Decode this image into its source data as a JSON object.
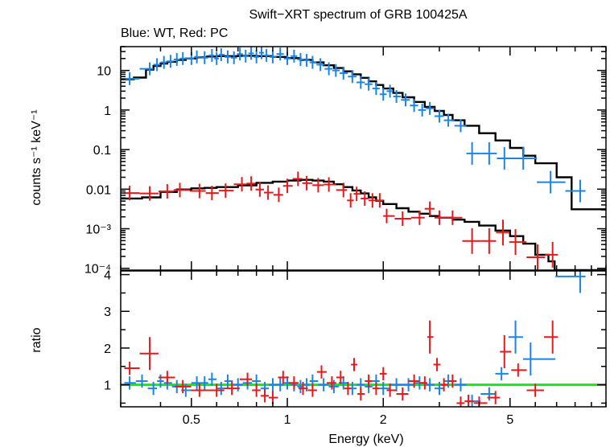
{
  "chart_data": {
    "type": "scatter",
    "title": "Swift−XRT spectrum of GRB 100425A",
    "subtitle": "Blue: WT, Red: PC",
    "xlabel": "Energy (keV)",
    "x_scale": "log",
    "xlim": [
      0.3,
      10
    ],
    "x_ticks": [
      {
        "value": 0.5,
        "label": "0.5"
      },
      {
        "value": 1,
        "label": "1"
      },
      {
        "value": 2,
        "label": "2"
      },
      {
        "value": 5,
        "label": "5"
      }
    ],
    "colors": {
      "wt": "#1a85e6",
      "pc": "#e8191a",
      "model": "#000000",
      "unity": "#19e619"
    },
    "top_panel": {
      "ylabel": "counts s⁻¹ keV⁻¹",
      "y_scale": "log",
      "ylim": [
        9e-05,
        40
      ],
      "y_ticks": [
        {
          "value": 10,
          "label": "10"
        },
        {
          "value": 1,
          "label": "1"
        },
        {
          "value": 0.1,
          "label": "0.1"
        },
        {
          "value": 0.01,
          "label": "0.01"
        },
        {
          "value": 0.001,
          "label": "10⁻³"
        },
        {
          "value": 0.0001,
          "label": "10⁻⁴"
        }
      ],
      "series": [
        {
          "color": "wt",
          "points": [
            [
              0.32,
              6.2
            ],
            [
              0.37,
              11
            ],
            [
              0.39,
              14
            ],
            [
              0.41,
              16
            ],
            [
              0.43,
              17
            ],
            [
              0.45,
              19
            ],
            [
              0.47,
              20
            ],
            [
              0.5,
              20
            ],
            [
              0.52,
              22
            ],
            [
              0.55,
              21
            ],
            [
              0.58,
              24
            ],
            [
              0.6,
              20
            ],
            [
              0.62,
              25
            ],
            [
              0.65,
              22
            ],
            [
              0.68,
              21
            ],
            [
              0.71,
              26
            ],
            [
              0.74,
              23
            ],
            [
              0.77,
              27
            ],
            [
              0.8,
              22
            ],
            [
              0.83,
              28
            ],
            [
              0.86,
              24
            ],
            [
              0.9,
              22
            ],
            [
              0.95,
              26
            ],
            [
              1.0,
              20
            ],
            [
              1.05,
              23
            ],
            [
              1.1,
              19
            ],
            [
              1.15,
              18
            ],
            [
              1.2,
              16
            ],
            [
              1.27,
              14
            ],
            [
              1.35,
              11
            ],
            [
              1.42,
              10
            ],
            [
              1.5,
              8.5
            ],
            [
              1.6,
              7
            ],
            [
              1.7,
              5
            ],
            [
              1.8,
              4.5
            ],
            [
              1.9,
              3.5
            ],
            [
              2.0,
              2.5
            ],
            [
              2.1,
              3.0
            ],
            [
              2.2,
              2.2
            ],
            [
              2.35,
              1.8
            ],
            [
              2.5,
              1.3
            ],
            [
              2.65,
              1.0
            ],
            [
              2.8,
              1.1
            ],
            [
              3.0,
              0.7
            ],
            [
              3.2,
              0.55
            ],
            [
              3.5,
              0.4
            ],
            [
              3.8,
              0.08
            ],
            [
              4.3,
              0.08
            ],
            [
              4.8,
              0.06
            ],
            [
              5.5,
              0.06
            ],
            [
              6.7,
              0.015
            ],
            [
              8.3,
              0.009
            ]
          ]
        },
        {
          "color": "pc",
          "points": [
            [
              0.32,
              0.008
            ],
            [
              0.37,
              0.0078
            ],
            [
              0.42,
              0.0088
            ],
            [
              0.46,
              0.0095
            ],
            [
              0.53,
              0.009
            ],
            [
              0.58,
              0.008
            ],
            [
              0.64,
              0.0092
            ],
            [
              0.72,
              0.0133
            ],
            [
              0.77,
              0.0139
            ],
            [
              0.82,
              0.0098
            ],
            [
              0.87,
              0.0082
            ],
            [
              0.94,
              0.0072
            ],
            [
              1.0,
              0.0121
            ],
            [
              1.08,
              0.0182
            ],
            [
              1.15,
              0.0142
            ],
            [
              1.25,
              0.0126
            ],
            [
              1.35,
              0.0131
            ],
            [
              1.5,
              0.0095
            ],
            [
              1.58,
              0.0052
            ],
            [
              1.65,
              0.0076
            ],
            [
              1.75,
              0.0058
            ],
            [
              1.85,
              0.0052
            ],
            [
              1.95,
              0.0052
            ],
            [
              2.05,
              0.0021
            ],
            [
              2.3,
              0.0018
            ],
            [
              2.6,
              0.0019
            ],
            [
              2.8,
              0.0032
            ],
            [
              3.0,
              0.0019
            ],
            [
              3.3,
              0.0019
            ],
            [
              3.8,
              0.00049
            ],
            [
              4.3,
              0.00049
            ],
            [
              4.75,
              0.0008
            ],
            [
              5.2,
              0.00046
            ],
            [
              6.1,
              0.00019
            ],
            [
              6.8,
              0.00022
            ]
          ]
        }
      ],
      "models": [
        {
          "color": "model",
          "steps": [
            [
              0.3,
              6.0
            ],
            [
              0.33,
              6.6
            ],
            [
              0.36,
              10.5
            ],
            [
              0.38,
              13
            ],
            [
              0.4,
              15
            ],
            [
              0.42,
              16.5
            ],
            [
              0.45,
              18.5
            ],
            [
              0.48,
              20
            ],
            [
              0.52,
              21.5
            ],
            [
              0.56,
              22.5
            ],
            [
              0.6,
              23
            ],
            [
              0.7,
              23.5
            ],
            [
              0.8,
              23
            ],
            [
              0.9,
              22
            ],
            [
              1.0,
              20.5
            ],
            [
              1.1,
              18.5
            ],
            [
              1.2,
              16
            ],
            [
              1.3,
              13.5
            ],
            [
              1.4,
              11.5
            ],
            [
              1.5,
              9.5
            ],
            [
              1.6,
              8
            ],
            [
              1.7,
              6.5
            ],
            [
              1.8,
              5.3
            ],
            [
              1.9,
              4.3
            ],
            [
              2.0,
              3.5
            ],
            [
              2.15,
              2.7
            ],
            [
              2.3,
              2.1
            ],
            [
              2.5,
              1.6
            ],
            [
              2.7,
              1.2
            ],
            [
              2.9,
              0.95
            ],
            [
              3.1,
              0.75
            ],
            [
              3.3,
              0.55
            ],
            [
              3.6,
              0.4
            ],
            [
              4.0,
              0.26
            ],
            [
              4.5,
              0.17
            ],
            [
              5.0,
              0.11
            ],
            [
              5.5,
              0.07
            ],
            [
              6.0,
              0.045
            ],
            [
              7.0,
              0.02
            ],
            [
              7.8,
              0.0031
            ],
            [
              10,
              0.0031
            ]
          ]
        },
        {
          "color": "model",
          "steps": [
            [
              0.3,
              0.0058
            ],
            [
              0.35,
              0.0062
            ],
            [
              0.4,
              0.0085
            ],
            [
              0.45,
              0.0098
            ],
            [
              0.5,
              0.0105
            ],
            [
              0.55,
              0.0108
            ],
            [
              0.6,
              0.0113
            ],
            [
              0.7,
              0.0125
            ],
            [
              0.8,
              0.0145
            ],
            [
              0.9,
              0.0155
            ],
            [
              1.0,
              0.0165
            ],
            [
              1.1,
              0.0172
            ],
            [
              1.2,
              0.0165
            ],
            [
              1.3,
              0.0155
            ],
            [
              1.4,
              0.0133
            ],
            [
              1.5,
              0.0113
            ],
            [
              1.6,
              0.0093
            ],
            [
              1.7,
              0.0078
            ],
            [
              1.8,
              0.0062
            ],
            [
              1.9,
              0.0051
            ],
            [
              2.0,
              0.0042
            ],
            [
              2.2,
              0.0033
            ],
            [
              2.4,
              0.0027
            ],
            [
              2.6,
              0.0024
            ],
            [
              2.8,
              0.0021
            ],
            [
              3.0,
              0.0019
            ],
            [
              3.3,
              0.0017
            ],
            [
              3.6,
              0.0015
            ],
            [
              4.0,
              0.0012
            ],
            [
              4.5,
              0.0009
            ],
            [
              5.0,
              0.00065
            ],
            [
              5.5,
              0.00042
            ],
            [
              6.0,
              0.00022
            ],
            [
              6.6,
              0.00015
            ],
            [
              6.9,
              9e-05
            ]
          ]
        }
      ]
    },
    "bottom_panel": {
      "ylabel": "ratio",
      "y_scale": "linear",
      "ylim": [
        0.4,
        4.1
      ],
      "y_ticks": [
        {
          "value": 1,
          "label": "1"
        },
        {
          "value": 2,
          "label": "2"
        },
        {
          "value": 3,
          "label": "3"
        },
        {
          "value": 4,
          "label": "4"
        }
      ],
      "unity_line": 1,
      "series": [
        {
          "color": "wt",
          "points": [
            [
              0.32,
              1.05
            ],
            [
              0.35,
              1.1
            ],
            [
              0.38,
              0.9
            ],
            [
              0.4,
              1.1
            ],
            [
              0.42,
              1.05
            ],
            [
              0.45,
              0.95
            ],
            [
              0.48,
              0.85
            ],
            [
              0.52,
              1.05
            ],
            [
              0.55,
              1.05
            ],
            [
              0.58,
              1.15
            ],
            [
              0.62,
              0.9
            ],
            [
              0.65,
              1.1
            ],
            [
              0.7,
              1.0
            ],
            [
              0.75,
              1.05
            ],
            [
              0.8,
              1.1
            ],
            [
              0.85,
              0.9
            ],
            [
              0.9,
              1.0
            ],
            [
              0.95,
              1.0
            ],
            [
              1.0,
              1.05
            ],
            [
              1.05,
              1.0
            ],
            [
              1.1,
              0.95
            ],
            [
              1.15,
              1.0
            ],
            [
              1.2,
              1.1
            ],
            [
              1.3,
              1.0
            ],
            [
              1.4,
              0.95
            ],
            [
              1.5,
              1.05
            ],
            [
              1.6,
              0.9
            ],
            [
              1.7,
              1.0
            ],
            [
              1.8,
              0.95
            ],
            [
              1.9,
              1.1
            ],
            [
              2.0,
              0.9
            ],
            [
              2.2,
              1.0
            ],
            [
              2.4,
              1.0
            ],
            [
              2.6,
              1.05
            ],
            [
              2.8,
              1.0
            ],
            [
              3.0,
              0.9
            ],
            [
              3.2,
              1.1
            ],
            [
              3.5,
              1.0
            ],
            [
              3.8,
              0.55
            ],
            [
              4.3,
              0.75
            ],
            [
              4.7,
              1.3
            ],
            [
              5.2,
              2.3
            ],
            [
              5.8,
              1.7
            ],
            [
              8.3,
              3.95
            ]
          ]
        },
        {
          "color": "pc",
          "points": [
            [
              0.32,
              1.45
            ],
            [
              0.37,
              1.85
            ],
            [
              0.42,
              1.2
            ],
            [
              0.47,
              0.95
            ],
            [
              0.53,
              0.85
            ],
            [
              0.6,
              0.85
            ],
            [
              0.67,
              0.9
            ],
            [
              0.75,
              1.15
            ],
            [
              0.8,
              0.85
            ],
            [
              0.85,
              0.7
            ],
            [
              0.9,
              0.65
            ],
            [
              0.97,
              1.2
            ],
            [
              1.05,
              1.05
            ],
            [
              1.12,
              0.9
            ],
            [
              1.2,
              0.85
            ],
            [
              1.28,
              1.35
            ],
            [
              1.38,
              1.05
            ],
            [
              1.47,
              1.2
            ],
            [
              1.55,
              0.9
            ],
            [
              1.62,
              1.55
            ],
            [
              1.7,
              0.75
            ],
            [
              1.8,
              1.1
            ],
            [
              1.9,
              0.9
            ],
            [
              2.0,
              1.3
            ],
            [
              2.1,
              0.85
            ],
            [
              2.3,
              0.75
            ],
            [
              2.5,
              1.1
            ],
            [
              2.7,
              1.05
            ],
            [
              2.8,
              2.3
            ],
            [
              2.95,
              1.55
            ],
            [
              3.1,
              1.0
            ],
            [
              3.3,
              1.1
            ],
            [
              3.5,
              0.5
            ],
            [
              3.7,
              0.55
            ],
            [
              4.0,
              0.5
            ],
            [
              4.5,
              0.65
            ],
            [
              4.8,
              1.9
            ],
            [
              5.3,
              1.4
            ],
            [
              6.0,
              0.85
            ],
            [
              6.8,
              2.3
            ]
          ]
        }
      ]
    }
  }
}
